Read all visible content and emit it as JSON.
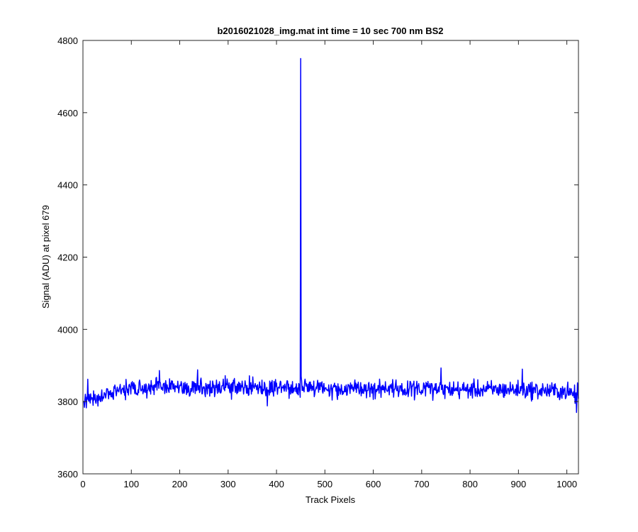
{
  "chart_data": {
    "type": "line",
    "title": "b2016021028_img.mat int time = 10 sec  700 nm BS2",
    "xlabel": "Track Pixels",
    "ylabel": "Signal (ADU) at pixel 679",
    "xlim": [
      0,
      1024
    ],
    "ylim": [
      3600,
      4800
    ],
    "xticks": [
      0,
      100,
      200,
      300,
      400,
      500,
      600,
      700,
      800,
      900,
      1000
    ],
    "yticks": [
      3600,
      3800,
      4000,
      4200,
      4400,
      4600,
      4800
    ],
    "grid": false,
    "box": true,
    "line_color": "#0000ff",
    "series": [
      {
        "x_start": 1,
        "x_step": 1,
        "n_points": 1024,
        "baseline": [
          [
            1,
            3800
          ],
          [
            100,
            3840
          ],
          [
            200,
            3840
          ],
          [
            300,
            3840
          ],
          [
            400,
            3838
          ],
          [
            500,
            3837
          ],
          [
            600,
            3836
          ],
          [
            700,
            3834
          ],
          [
            800,
            3833
          ],
          [
            900,
            3833
          ],
          [
            1000,
            3828
          ],
          [
            1024,
            3815
          ]
        ],
        "noise_amplitude": 12,
        "spike": {
          "x": 450,
          "y": 4750
        },
        "notable_points": [
          [
            1,
            3800
          ],
          [
            3,
            3784
          ],
          [
            10,
            3862
          ],
          [
            15,
            3796
          ],
          [
            158,
            3886
          ],
          [
            237,
            3888
          ],
          [
            381,
            3788
          ],
          [
            450,
            4750
          ],
          [
            451,
            3870
          ],
          [
            740,
            3893
          ],
          [
            908,
            3890
          ],
          [
            1020,
            3770
          ],
          [
            1022,
            3852
          ],
          [
            1024,
            3808
          ]
        ]
      }
    ]
  }
}
